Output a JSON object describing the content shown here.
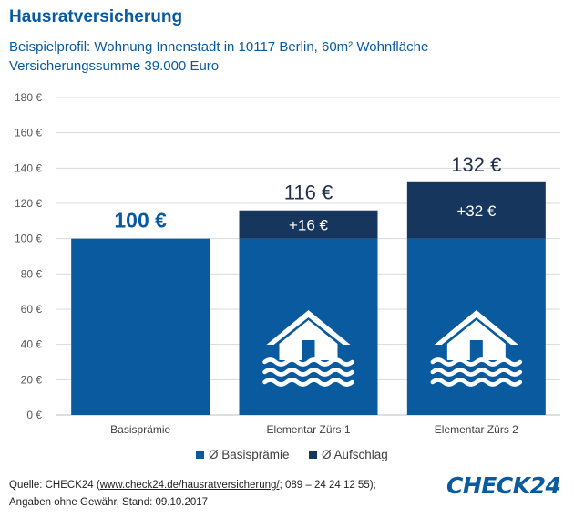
{
  "header": {
    "title": "Hausratversicherung",
    "subtitle_line1": "Beispielprofil: Wohnung Innenstadt in 10117 Berlin, 60m² Wohnfläche",
    "subtitle_line2": "Versicherungssumme 39.000 Euro"
  },
  "chart_data": {
    "type": "bar",
    "stacked": true,
    "categories": [
      "Basisprämie",
      "Elementar Zürs 1",
      "Elementar Zürs 2"
    ],
    "series": [
      {
        "name": "Ø Basisprämie",
        "values": [
          100,
          100,
          100
        ],
        "color": "#0a5aa0"
      },
      {
        "name": "Ø Aufschlag",
        "values": [
          0,
          16,
          32
        ],
        "color": "#17365d"
      }
    ],
    "total_labels": [
      "100 €",
      "116 €",
      "132 €"
    ],
    "segment_labels": [
      "",
      "+16 €",
      "+32 €"
    ],
    "y_ticks": [
      "0 €",
      "20 €",
      "40 €",
      "60 €",
      "80 €",
      "100 €",
      "120 €",
      "140 €",
      "160 €",
      "180 €"
    ],
    "ylim": [
      0,
      180
    ],
    "grid": true,
    "legend_position": "bottom",
    "flood_icon_on": [
      "Elementar Zürs 1",
      "Elementar Zürs 2"
    ],
    "colors": {
      "base": "#0a5aa0",
      "surcharge": "#17365d",
      "grid": "#d9d9d9",
      "axis": "#595959"
    }
  },
  "footer": {
    "line1_prefix": "Quelle: CHECK24 (",
    "line1_link": "www.check24.de/hausratversicherung/",
    "line1_suffix": "; 089 – 24 24 12 55);",
    "line2": "Angaben ohne Gewähr, Stand: 09.10.2017"
  },
  "logo": {
    "text": "CHECK24",
    "icon": "check24-logo"
  }
}
